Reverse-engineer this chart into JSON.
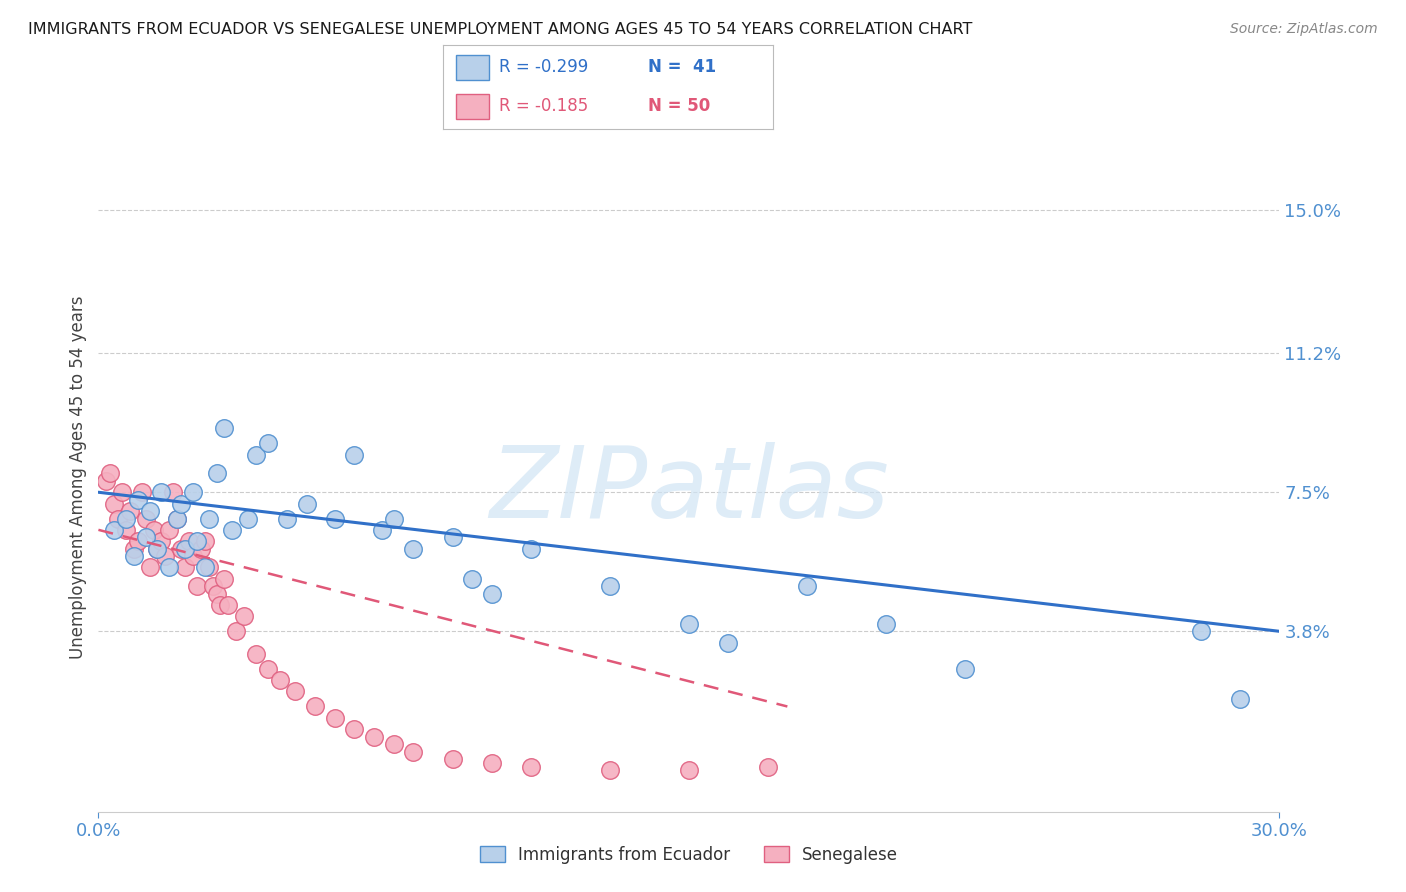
{
  "title": "IMMIGRANTS FROM ECUADOR VS SENEGALESE UNEMPLOYMENT AMONG AGES 45 TO 54 YEARS CORRELATION CHART",
  "source": "Source: ZipAtlas.com",
  "ylabel": "Unemployment Among Ages 45 to 54 years",
  "y_ticks": [
    0.038,
    0.075,
    0.112,
    0.15
  ],
  "y_tick_labels": [
    "3.8%",
    "7.5%",
    "11.2%",
    "15.0%"
  ],
  "x_range": [
    0.0,
    0.3
  ],
  "y_range": [
    -0.01,
    0.168
  ],
  "blue_label": "Immigrants from Ecuador",
  "pink_label": "Senegalese",
  "blue_R": "-0.299",
  "blue_N": "41",
  "pink_R": "-0.185",
  "pink_N": "50",
  "blue_color": "#b8d0ea",
  "pink_color": "#f5b0c0",
  "blue_edge_color": "#5090d0",
  "pink_edge_color": "#e06080",
  "blue_line_color": "#3070c8",
  "pink_line_color": "#e05878",
  "watermark_color": "#d0e4f4",
  "watermark": "ZIPatlas",
  "blue_scatter_x": [
    0.004,
    0.007,
    0.009,
    0.01,
    0.012,
    0.013,
    0.015,
    0.016,
    0.018,
    0.02,
    0.021,
    0.022,
    0.024,
    0.025,
    0.027,
    0.028,
    0.03,
    0.032,
    0.034,
    0.038,
    0.04,
    0.043,
    0.048,
    0.053,
    0.06,
    0.065,
    0.072,
    0.075,
    0.08,
    0.09,
    0.095,
    0.1,
    0.11,
    0.13,
    0.15,
    0.16,
    0.18,
    0.2,
    0.22,
    0.28,
    0.29
  ],
  "blue_scatter_y": [
    0.065,
    0.068,
    0.058,
    0.073,
    0.063,
    0.07,
    0.06,
    0.075,
    0.055,
    0.068,
    0.072,
    0.06,
    0.075,
    0.062,
    0.055,
    0.068,
    0.08,
    0.092,
    0.065,
    0.068,
    0.085,
    0.088,
    0.068,
    0.072,
    0.068,
    0.085,
    0.065,
    0.068,
    0.06,
    0.063,
    0.052,
    0.048,
    0.06,
    0.05,
    0.04,
    0.035,
    0.05,
    0.04,
    0.028,
    0.038,
    0.02
  ],
  "pink_scatter_x": [
    0.002,
    0.003,
    0.004,
    0.005,
    0.006,
    0.007,
    0.008,
    0.009,
    0.01,
    0.011,
    0.012,
    0.013,
    0.014,
    0.015,
    0.016,
    0.017,
    0.018,
    0.019,
    0.02,
    0.021,
    0.022,
    0.023,
    0.024,
    0.025,
    0.026,
    0.027,
    0.028,
    0.029,
    0.03,
    0.031,
    0.032,
    0.033,
    0.035,
    0.037,
    0.04,
    0.043,
    0.046,
    0.05,
    0.055,
    0.06,
    0.065,
    0.07,
    0.075,
    0.08,
    0.09,
    0.1,
    0.11,
    0.13,
    0.15,
    0.17
  ],
  "pink_scatter_y": [
    0.078,
    0.08,
    0.072,
    0.068,
    0.075,
    0.065,
    0.07,
    0.06,
    0.062,
    0.075,
    0.068,
    0.055,
    0.065,
    0.06,
    0.062,
    0.058,
    0.065,
    0.075,
    0.068,
    0.06,
    0.055,
    0.062,
    0.058,
    0.05,
    0.06,
    0.062,
    0.055,
    0.05,
    0.048,
    0.045,
    0.052,
    0.045,
    0.038,
    0.042,
    0.032,
    0.028,
    0.025,
    0.022,
    0.018,
    0.015,
    0.012,
    0.01,
    0.008,
    0.006,
    0.004,
    0.003,
    0.002,
    0.001,
    0.001,
    0.002
  ],
  "blue_trend_x": [
    0.0,
    0.3
  ],
  "blue_trend_y": [
    0.075,
    0.038
  ],
  "pink_trend_x": [
    0.0,
    0.175
  ],
  "pink_trend_y": [
    0.065,
    0.018
  ],
  "figsize": [
    14.06,
    8.92
  ],
  "dpi": 100
}
